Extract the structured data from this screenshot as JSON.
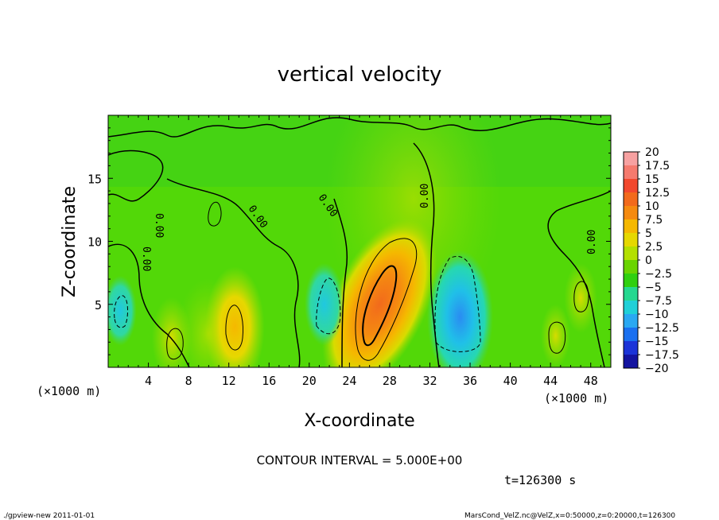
{
  "chart_data": {
    "type": "heatmap",
    "title": "vertical velocity",
    "xlabel": "X-coordinate",
    "ylabel": "Z-coordinate",
    "x_unit_left": "(×1000 m)",
    "x_unit_right": "(×1000 m)",
    "xlim": [
      0,
      50
    ],
    "ylim": [
      0,
      20
    ],
    "xticks": [
      4,
      8,
      12,
      16,
      20,
      24,
      28,
      32,
      36,
      40,
      44,
      48
    ],
    "yticks": [
      5,
      10,
      15
    ],
    "colorbar": {
      "levels": [
        20,
        17.5,
        15,
        12.5,
        10,
        7.5,
        5,
        2.5,
        0,
        -2.5,
        -5,
        -7.5,
        -10,
        -12.5,
        -15,
        -17.5,
        -20
      ],
      "labels": [
        "20",
        "17.5",
        "15",
        "12.5",
        "10",
        "7.5",
        "5",
        "2.5",
        "0",
        "−2.5",
        "−5",
        "−7.5",
        "−10",
        "−12.5",
        "−15",
        "−17.5",
        "−20"
      ],
      "colors": [
        "#f7a1a1",
        "#f57a6e",
        "#f2482e",
        "#f26a1c",
        "#f58a10",
        "#f5b800",
        "#e6d800",
        "#b4e000",
        "#6ad400",
        "#30d010",
        "#26d890",
        "#20d0d8",
        "#2aa8f2",
        "#1a70f0",
        "#1c34d8",
        "#1414a0",
        "#6a20b8"
      ]
    },
    "contour_interval": "CONTOUR INTERVAL = 5.000E+00",
    "contour_labels": [
      "0.00",
      "0.00",
      "0.00",
      "0.00",
      "0.00",
      "0.00"
    ],
    "time_label": "t=126300 s",
    "features": [
      {
        "x": 27,
        "z": 5,
        "value": 12
      },
      {
        "x": 12.6,
        "z": 3.2,
        "value": 7
      },
      {
        "x": 6.3,
        "z": 2.3,
        "value": 4
      },
      {
        "x": 35,
        "z": 4,
        "value": -8
      },
      {
        "x": 21.5,
        "z": 5,
        "value": -4
      },
      {
        "x": 1.2,
        "z": 4.5,
        "value": -3
      },
      {
        "x": 47,
        "z": 5.5,
        "value": 3
      },
      {
        "x": 44.5,
        "z": 2.5,
        "value": 2.5
      }
    ]
  },
  "footer": {
    "left": "./gpview-new   2011-01-01",
    "right": "MarsCond_VelZ.nc@VelZ,x=0:50000,z=0:20000,t=126300"
  }
}
